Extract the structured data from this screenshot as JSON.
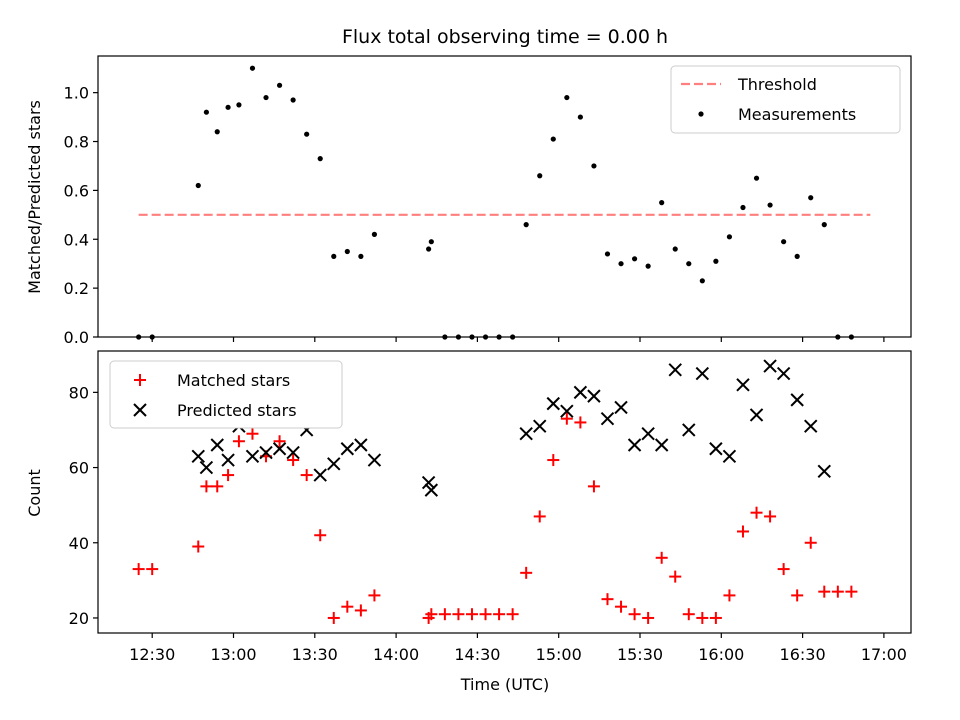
{
  "chart_data": {
    "type": "scatter",
    "title": "Flux total observing time = 0.00 h",
    "xlabel": "Time (UTC)",
    "xlim": [
      "12:10",
      "17:10"
    ],
    "xticks": [
      "12:30",
      "13:00",
      "13:30",
      "14:00",
      "14:30",
      "15:00",
      "15:30",
      "16:00",
      "16:30",
      "17:00"
    ],
    "panels": [
      {
        "id": "top",
        "ylabel": "Matched/Predicted stars",
        "ylim": [
          0.0,
          1.15
        ],
        "yticks": [
          "0.0",
          "0.2",
          "0.4",
          "0.6",
          "0.8",
          "1.0"
        ],
        "legend_position": "upper right",
        "threshold": {
          "name": "Threshold",
          "value": 0.5,
          "x_start": "12:25",
          "x_end": "16:55",
          "color": "#ff7f7f"
        },
        "series": [
          {
            "name": "Measurements",
            "color": "#000000",
            "marker": "dot",
            "points": [
              [
                "12:25",
                0.0
              ],
              [
                "12:30",
                0.0
              ],
              [
                "12:47",
                0.62
              ],
              [
                "12:50",
                0.92
              ],
              [
                "12:54",
                0.84
              ],
              [
                "12:58",
                0.94
              ],
              [
                "13:02",
                0.95
              ],
              [
                "13:07",
                1.1
              ],
              [
                "13:12",
                0.98
              ],
              [
                "13:17",
                1.03
              ],
              [
                "13:22",
                0.97
              ],
              [
                "13:27",
                0.83
              ],
              [
                "13:32",
                0.73
              ],
              [
                "13:37",
                0.33
              ],
              [
                "13:42",
                0.35
              ],
              [
                "13:47",
                0.33
              ],
              [
                "13:52",
                0.42
              ],
              [
                "14:12",
                0.36
              ],
              [
                "14:13",
                0.39
              ],
              [
                "14:18",
                0.0
              ],
              [
                "14:23",
                0.0
              ],
              [
                "14:28",
                0.0
              ],
              [
                "14:33",
                0.0
              ],
              [
                "14:38",
                0.0
              ],
              [
                "14:43",
                0.0
              ],
              [
                "14:48",
                0.46
              ],
              [
                "14:53",
                0.66
              ],
              [
                "14:58",
                0.81
              ],
              [
                "15:03",
                0.98
              ],
              [
                "15:08",
                0.9
              ],
              [
                "15:13",
                0.7
              ],
              [
                "15:18",
                0.34
              ],
              [
                "15:23",
                0.3
              ],
              [
                "15:28",
                0.32
              ],
              [
                "15:33",
                0.29
              ],
              [
                "15:38",
                0.55
              ],
              [
                "15:43",
                0.36
              ],
              [
                "15:48",
                0.3
              ],
              [
                "15:53",
                0.23
              ],
              [
                "15:58",
                0.31
              ],
              [
                "16:03",
                0.41
              ],
              [
                "16:08",
                0.53
              ],
              [
                "16:13",
                0.65
              ],
              [
                "16:18",
                0.54
              ],
              [
                "16:23",
                0.39
              ],
              [
                "16:28",
                0.33
              ],
              [
                "16:33",
                0.57
              ],
              [
                "16:38",
                0.46
              ],
              [
                "16:43",
                0.0
              ],
              [
                "16:48",
                0.0
              ]
            ]
          }
        ]
      },
      {
        "id": "bottom",
        "ylabel": "Count",
        "ylim": [
          16,
          91
        ],
        "yticks": [
          "20",
          "40",
          "60",
          "80"
        ],
        "legend_position": "upper left",
        "series": [
          {
            "name": "Matched stars",
            "color": "#ff0000",
            "marker": "plus",
            "points": [
              [
                "12:25",
                33
              ],
              [
                "12:30",
                33
              ],
              [
                "12:47",
                39
              ],
              [
                "12:50",
                55
              ],
              [
                "12:54",
                55
              ],
              [
                "12:58",
                58
              ],
              [
                "13:02",
                67
              ],
              [
                "13:07",
                69
              ],
              [
                "13:12",
                63
              ],
              [
                "13:17",
                67
              ],
              [
                "13:22",
                62
              ],
              [
                "13:27",
                58
              ],
              [
                "13:32",
                42
              ],
              [
                "13:37",
                20
              ],
              [
                "13:42",
                23
              ],
              [
                "13:47",
                22
              ],
              [
                "13:52",
                26
              ],
              [
                "14:12",
                20
              ],
              [
                "14:13",
                21
              ],
              [
                "14:18",
                21
              ],
              [
                "14:23",
                21
              ],
              [
                "14:28",
                21
              ],
              [
                "14:33",
                21
              ],
              [
                "14:38",
                21
              ],
              [
                "14:43",
                21
              ],
              [
                "14:48",
                32
              ],
              [
                "14:53",
                47
              ],
              [
                "14:58",
                62
              ],
              [
                "15:03",
                73
              ],
              [
                "15:08",
                72
              ],
              [
                "15:13",
                55
              ],
              [
                "15:18",
                25
              ],
              [
                "15:23",
                23
              ],
              [
                "15:28",
                21
              ],
              [
                "15:33",
                20
              ],
              [
                "15:38",
                36
              ],
              [
                "15:43",
                31
              ],
              [
                "15:48",
                21
              ],
              [
                "15:53",
                20
              ],
              [
                "15:58",
                20
              ],
              [
                "16:03",
                26
              ],
              [
                "16:08",
                43
              ],
              [
                "16:13",
                48
              ],
              [
                "16:18",
                47
              ],
              [
                "16:23",
                33
              ],
              [
                "16:28",
                26
              ],
              [
                "16:33",
                40
              ],
              [
                "16:38",
                27
              ],
              [
                "16:43",
                27
              ],
              [
                "16:48",
                27
              ]
            ]
          },
          {
            "name": "Predicted stars",
            "color": "#000000",
            "marker": "cross",
            "points": [
              [
                "12:47",
                63
              ],
              [
                "12:50",
                60
              ],
              [
                "12:54",
                66
              ],
              [
                "12:58",
                62
              ],
              [
                "13:02",
                71
              ],
              [
                "13:07",
                63
              ],
              [
                "13:12",
                64
              ],
              [
                "13:17",
                65
              ],
              [
                "13:22",
                64
              ],
              [
                "13:27",
                70
              ],
              [
                "13:32",
                58
              ],
              [
                "13:37",
                61
              ],
              [
                "13:42",
                65
              ],
              [
                "13:47",
                66
              ],
              [
                "13:52",
                62
              ],
              [
                "14:12",
                56
              ],
              [
                "14:13",
                54
              ],
              [
                "14:48",
                69
              ],
              [
                "14:53",
                71
              ],
              [
                "14:58",
                77
              ],
              [
                "15:03",
                75
              ],
              [
                "15:08",
                80
              ],
              [
                "15:13",
                79
              ],
              [
                "15:18",
                73
              ],
              [
                "15:23",
                76
              ],
              [
                "15:28",
                66
              ],
              [
                "15:33",
                69
              ],
              [
                "15:38",
                66
              ],
              [
                "15:43",
                86
              ],
              [
                "15:48",
                70
              ],
              [
                "15:53",
                85
              ],
              [
                "15:58",
                65
              ],
              [
                "16:03",
                63
              ],
              [
                "16:08",
                82
              ],
              [
                "16:13",
                74
              ],
              [
                "16:18",
                87
              ],
              [
                "16:23",
                85
              ],
              [
                "16:28",
                78
              ],
              [
                "16:33",
                71
              ],
              [
                "16:38",
                59
              ]
            ]
          }
        ]
      }
    ]
  }
}
